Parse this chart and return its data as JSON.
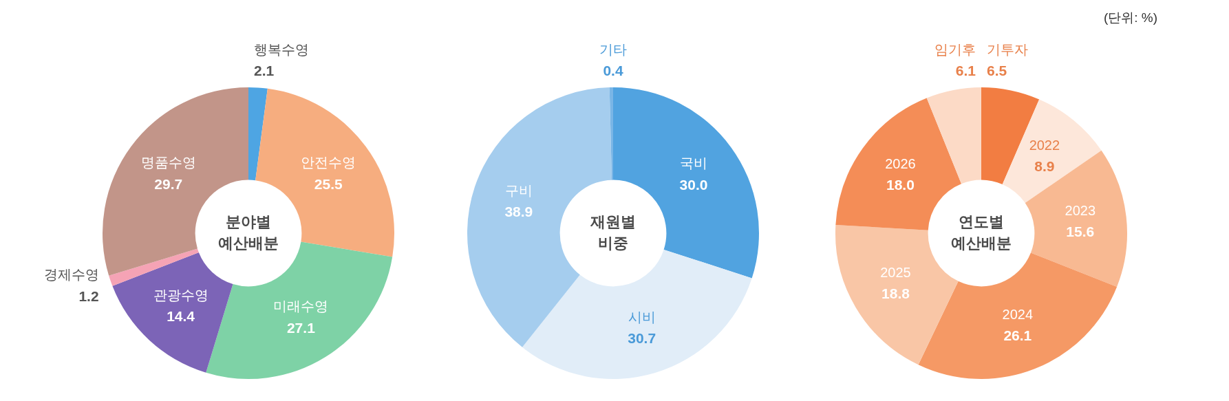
{
  "chart_data": [
    {
      "type": "donut",
      "title": "분야별 예산배분",
      "categories": [
        "행복수영",
        "안전수영",
        "미래수영",
        "관광수영",
        "경제수영",
        "명품수영"
      ],
      "values": [
        2.1,
        25.5,
        27.1,
        14.4,
        1.2,
        29.7
      ],
      "colors": [
        "#4ea5e3",
        "#f6ad7f",
        "#7ed2a6",
        "#7c64b7",
        "#f5a3b5",
        "#c29589"
      ],
      "data_labels": true,
      "legend": false
    },
    {
      "type": "donut",
      "title": "재원별 비중",
      "categories": [
        "국비",
        "시비",
        "구비",
        "기타"
      ],
      "values": [
        30.0,
        30.7,
        38.9,
        0.4
      ],
      "colors": [
        "#51a3e0",
        "#e1edf8",
        "#a5cdee",
        "#7ab6e6"
      ],
      "value_labels": [
        "30.0",
        "30.7",
        "38.9",
        "0.4"
      ],
      "legend": false
    },
    {
      "type": "donut",
      "title": "연도별 예산배분",
      "categories": [
        "기투자",
        "2022",
        "2023",
        "2024",
        "2025",
        "2026",
        "임기후"
      ],
      "values": [
        6.5,
        8.9,
        15.6,
        26.1,
        18.8,
        18.0,
        6.1
      ],
      "colors": [
        "#f27d42",
        "#fde7da",
        "#f8b992",
        "#f59965",
        "#f9c6a6",
        "#f48d57",
        "#fcdac6"
      ],
      "value_labels": [
        "6.5",
        "8.9",
        "15.6",
        "26.1",
        "18.8",
        "18.0",
        "6.1"
      ],
      "legend": false,
      "annotations": [
        "(단위: %)"
      ]
    }
  ]
}
